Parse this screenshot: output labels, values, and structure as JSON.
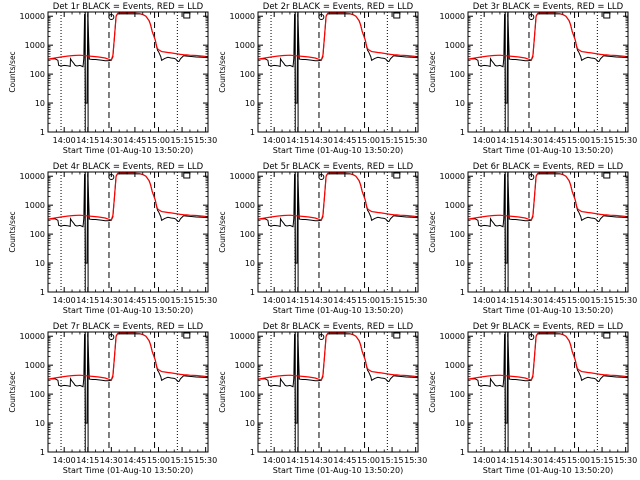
{
  "panel_titles": [
    "Det 1r BLACK = Events, RED = LLD",
    "Det 2r BLACK = Events, RED = LLD",
    "Det 3r BLACK = Events, RED = LLD",
    "Det 4r BLACK = Events, RED = LLD",
    "Det 5r BLACK = Events, RED = LLD",
    "Det 6r BLACK = Events, RED = LLD",
    "Det 7r BLACK = Events, RED = LLD",
    "Det 8r BLACK = Events, RED = LLD",
    "Det 9r BLACK = Events, RED = LLD"
  ],
  "chart_data": {
    "type": "line",
    "panel_count": 9,
    "layout": "3x3",
    "ylabel": "Counts/sec",
    "xlabel": "Start Time (01-Aug-10 13:50:20)",
    "xticks": [
      "14:00",
      "14:15",
      "14:30",
      "14:45",
      "15:00",
      "15:15",
      "15:30"
    ],
    "xtick_minutes": [
      0,
      15,
      30,
      45,
      60,
      75,
      90
    ],
    "xlim_minutes": [
      -10.3,
      91.5
    ],
    "yscale": "log",
    "yticks": [
      "1",
      "10",
      "100",
      "1000",
      "10000"
    ],
    "ytick_values": [
      1,
      10,
      100,
      1000,
      10000
    ],
    "ylim": [
      1,
      14000
    ],
    "colors": {
      "events": "#000000",
      "lld": "#ff0000"
    },
    "series": [
      {
        "name": "Events",
        "color": "#000000",
        "x": [
          -10.3,
          -6,
          -4,
          -3.5,
          -2,
          0,
          2,
          3.8,
          4,
          5,
          6,
          7,
          8,
          9,
          10,
          11,
          12,
          12.5,
          13,
          13.5,
          14,
          14.5,
          15,
          16,
          18,
          20,
          22,
          24,
          26,
          28,
          30,
          31,
          32,
          33,
          34,
          36,
          38,
          40,
          42,
          44,
          46,
          48,
          50,
          52,
          54,
          55,
          56,
          58,
          58.5,
          59,
          59.5,
          60,
          61,
          61.5,
          62,
          64,
          66,
          68,
          70,
          71,
          72,
          73,
          74,
          76,
          78,
          80,
          84,
          88,
          91.5
        ],
        "y": [
          330,
          340,
          300,
          200,
          190,
          200,
          195,
          185,
          340,
          280,
          240,
          200,
          190,
          195,
          200,
          190,
          180,
          340,
          12000,
          10,
          10,
          10,
          12000,
          330,
          320,
          320,
          310,
          300,
          290,
          290,
          300,
          400,
          2000,
          10000,
          12000,
          12000,
          12000,
          12000,
          12000,
          12000,
          12000,
          12000,
          11500,
          10000,
          7000,
          5000,
          3000,
          1500,
          1100,
          800,
          650,
          600,
          450,
          400,
          300,
          350,
          380,
          360,
          350,
          330,
          280,
          270,
          340,
          430,
          420,
          410,
          390,
          380,
          370
        ]
      },
      {
        "name": "LLD",
        "color": "#ff0000",
        "x": [
          -10.3,
          -6,
          -2,
          2,
          6,
          10,
          14,
          18,
          22,
          26,
          28,
          30,
          31,
          32,
          33,
          34,
          36,
          38,
          40,
          42,
          44,
          46,
          48,
          50,
          52,
          54,
          55,
          56,
          58,
          58.5,
          59,
          59.5,
          60,
          61,
          62,
          64,
          66,
          68,
          70,
          72,
          74,
          76,
          78,
          80,
          84,
          88,
          91.5
        ],
        "y": [
          330,
          360,
          390,
          420,
          440,
          450,
          430,
          410,
          390,
          360,
          330,
          310,
          450,
          2000,
          10000,
          12500,
          13000,
          13000,
          13000,
          12800,
          12800,
          12600,
          12300,
          11500,
          10000,
          7000,
          5000,
          3000,
          1500,
          1100,
          850,
          750,
          700,
          650,
          600,
          580,
          560,
          540,
          520,
          500,
          480,
          470,
          460,
          450,
          440,
          420,
          400
        ]
      }
    ],
    "vertical_lines": {
      "dotted_minutes": [
        -2,
        13.2,
        72
      ],
      "dashed_minutes": [
        28.5,
        57.5
      ],
      "solid_minutes": [
        13.4,
        15.2
      ]
    },
    "grid": false,
    "legend": "none"
  }
}
